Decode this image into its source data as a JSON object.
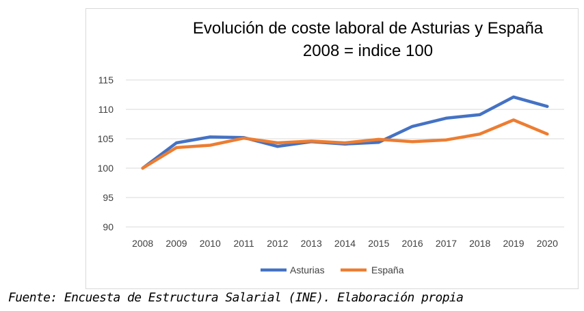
{
  "chart_data": {
    "type": "line",
    "title": [
      "Evolución de coste laboral de Asturias y España",
      "2008 = indice 100"
    ],
    "categories": [
      "2008",
      "2009",
      "2010",
      "2011",
      "2012",
      "2013",
      "2014",
      "2015",
      "2016",
      "2017",
      "2018",
      "2019",
      "2020"
    ],
    "ylim": [
      90,
      115
    ],
    "yticks": [
      90,
      95,
      100,
      105,
      110,
      115
    ],
    "grid": true,
    "legend_position": "bottom",
    "series": [
      {
        "name": "Asturias",
        "color": "#4472c4",
        "values": [
          100,
          104.3,
          105.3,
          105.2,
          103.7,
          104.5,
          104.1,
          104.4,
          107.1,
          108.5,
          109.1,
          112.1,
          110.5
        ]
      },
      {
        "name": "España",
        "color": "#ed7d31",
        "values": [
          100,
          103.5,
          103.9,
          105.1,
          104.3,
          104.6,
          104.3,
          104.9,
          104.5,
          104.8,
          105.8,
          108.2,
          105.8
        ]
      }
    ]
  },
  "caption": "Fuente: Encuesta de Estructura Salarial (INE). Elaboración propia"
}
